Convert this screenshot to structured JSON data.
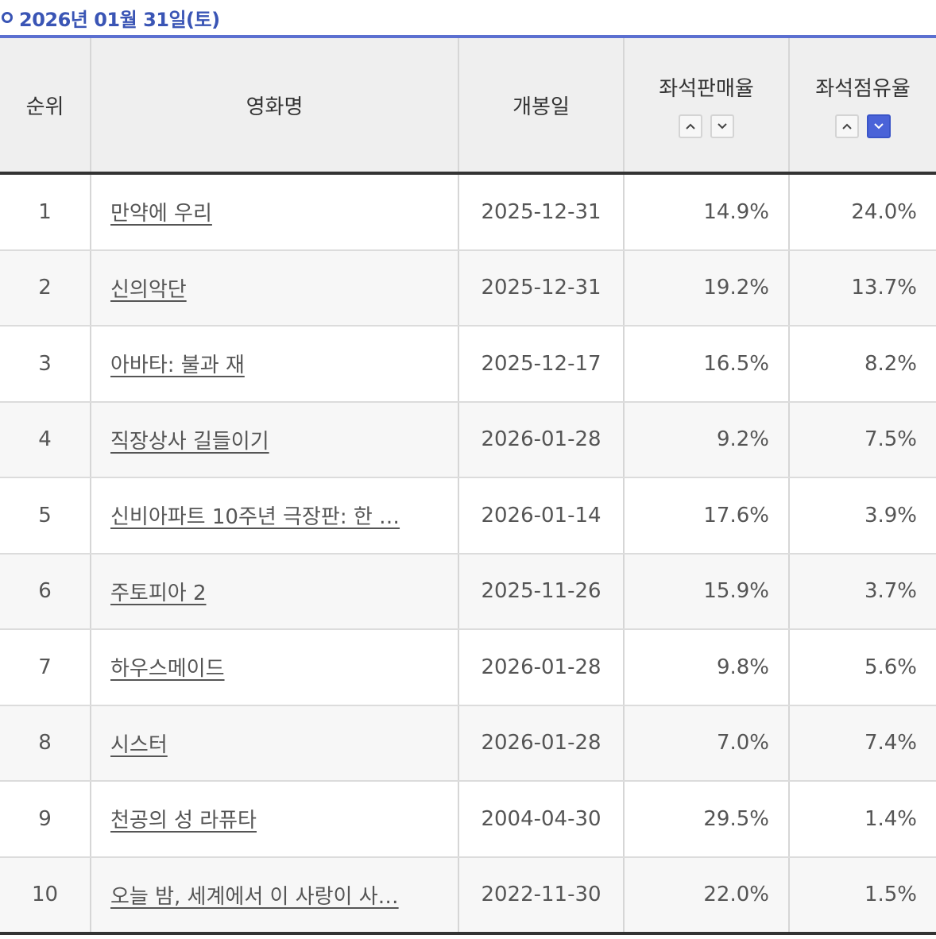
{
  "header": {
    "date_title": "2026년 01월 31일(토)"
  },
  "table": {
    "columns": {
      "rank": "순위",
      "title": "영화명",
      "release": "개봉일",
      "seat_sales": "좌석판매율",
      "seat_share": "좌석점유율"
    },
    "sort_icons": {
      "up": "chevron-up-icon",
      "down": "chevron-down-icon"
    },
    "active_sort": "seat_share-desc",
    "accent_color": "#4a63d8",
    "rows": [
      {
        "rank": "1",
        "title": "만약에 우리",
        "release": "2025-12-31",
        "seat_sales": "14.9%",
        "seat_share": "24.0%"
      },
      {
        "rank": "2",
        "title": "신의악단",
        "release": "2025-12-31",
        "seat_sales": "19.2%",
        "seat_share": "13.7%"
      },
      {
        "rank": "3",
        "title": "아바타: 불과 재",
        "release": "2025-12-17",
        "seat_sales": "16.5%",
        "seat_share": "8.2%"
      },
      {
        "rank": "4",
        "title": "직장상사 길들이기",
        "release": "2026-01-28",
        "seat_sales": "9.2%",
        "seat_share": "7.5%"
      },
      {
        "rank": "5",
        "title": "신비아파트 10주년 극장판: 한 …",
        "release": "2026-01-14",
        "seat_sales": "17.6%",
        "seat_share": "3.9%"
      },
      {
        "rank": "6",
        "title": "주토피아 2",
        "release": "2025-11-26",
        "seat_sales": "15.9%",
        "seat_share": "3.7%"
      },
      {
        "rank": "7",
        "title": "하우스메이드",
        "release": "2026-01-28",
        "seat_sales": "9.8%",
        "seat_share": "5.6%"
      },
      {
        "rank": "8",
        "title": "시스터",
        "release": "2026-01-28",
        "seat_sales": "7.0%",
        "seat_share": "7.4%"
      },
      {
        "rank": "9",
        "title": "천공의 성 라퓨타",
        "release": "2004-04-30",
        "seat_sales": "29.5%",
        "seat_share": "1.4%"
      },
      {
        "rank": "10",
        "title": "오늘 밤, 세계에서 이 사랑이 사…",
        "release": "2022-11-30",
        "seat_sales": "22.0%",
        "seat_share": "1.5%"
      }
    ]
  }
}
